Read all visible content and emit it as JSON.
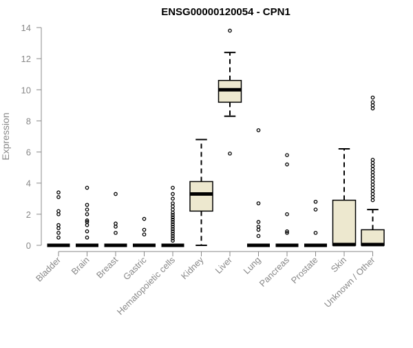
{
  "chart_data": {
    "type": "box",
    "title": "ENSG00000120054 - CPN1",
    "xlabel": "",
    "ylabel": "Expression",
    "ylim": [
      0,
      14
    ],
    "yticks": [
      0,
      2,
      4,
      6,
      8,
      10,
      12,
      14
    ],
    "box_fill": "#ede8cf",
    "categories": [
      "Bladder",
      "Brain",
      "Breast",
      "Gastric",
      "Hematopoietic cells",
      "Kidney",
      "Liver",
      "Lung",
      "Pancreas",
      "Prostate",
      "Skin",
      "Unknown / Other"
    ],
    "boxes": [
      {
        "category": "Bladder",
        "min": 0,
        "q1": 0,
        "median": 0,
        "q3": 0,
        "max": 0,
        "outliers": [
          0.5,
          0.8,
          1.1,
          1.3,
          2.0,
          2.2,
          3.1,
          3.4
        ]
      },
      {
        "category": "Brain",
        "min": 0,
        "q1": 0,
        "median": 0,
        "q3": 0,
        "max": 0,
        "outliers": [
          0.5,
          0.9,
          1.3,
          1.5,
          1.6,
          2.0,
          2.3,
          2.6,
          3.7
        ]
      },
      {
        "category": "Breast",
        "min": 0,
        "q1": 0,
        "median": 0,
        "q3": 0,
        "max": 0,
        "outliers": [
          0.8,
          1.2,
          1.4,
          3.3
        ]
      },
      {
        "category": "Gastric",
        "min": 0,
        "q1": 0,
        "median": 0,
        "q3": 0,
        "max": 0,
        "outliers": [
          0.7,
          1.0,
          1.7
        ]
      },
      {
        "category": "Hematopoietic cells",
        "min": 0,
        "q1": 0,
        "median": 0,
        "q3": 0,
        "max": 0,
        "outliers": [
          0.3,
          0.45,
          0.6,
          0.75,
          0.9,
          1.05,
          1.2,
          1.35,
          1.5,
          1.65,
          1.8,
          1.95,
          2.1,
          2.3,
          2.5,
          2.7,
          3.0,
          3.3,
          3.7
        ]
      },
      {
        "category": "Kidney",
        "min": 0,
        "q1": 2.2,
        "median": 3.3,
        "q3": 4.1,
        "max": 6.8,
        "outliers": []
      },
      {
        "category": "Liver",
        "min": 8.3,
        "q1": 9.2,
        "median": 10.0,
        "q3": 10.6,
        "max": 12.4,
        "outliers": [
          5.9,
          13.8
        ]
      },
      {
        "category": "Lung",
        "min": 0,
        "q1": 0,
        "median": 0,
        "q3": 0,
        "max": 0,
        "outliers": [
          0.6,
          1.0,
          1.2,
          1.5,
          2.7,
          7.4
        ]
      },
      {
        "category": "Pancreas",
        "min": 0,
        "q1": 0,
        "median": 0,
        "q3": 0,
        "max": 0,
        "outliers": [
          0.8,
          0.9,
          2.0,
          5.2,
          5.8
        ]
      },
      {
        "category": "Prostate",
        "min": 0,
        "q1": 0,
        "median": 0,
        "q3": 0,
        "max": 0,
        "outliers": [
          0.8,
          2.3,
          2.8
        ]
      },
      {
        "category": "Skin",
        "min": 0,
        "q1": 0,
        "median": 0.05,
        "q3": 2.9,
        "max": 6.2,
        "outliers": []
      },
      {
        "category": "Unknown / Other",
        "min": 0,
        "q1": 0,
        "median": 0.05,
        "q3": 1.0,
        "max": 2.3,
        "outliers": [
          2.9,
          3.1,
          3.3,
          3.5,
          3.7,
          3.9,
          4.1,
          4.3,
          4.5,
          4.7,
          4.9,
          5.1,
          5.3,
          5.5,
          8.8,
          9.0,
          9.2,
          9.5
        ]
      }
    ]
  }
}
